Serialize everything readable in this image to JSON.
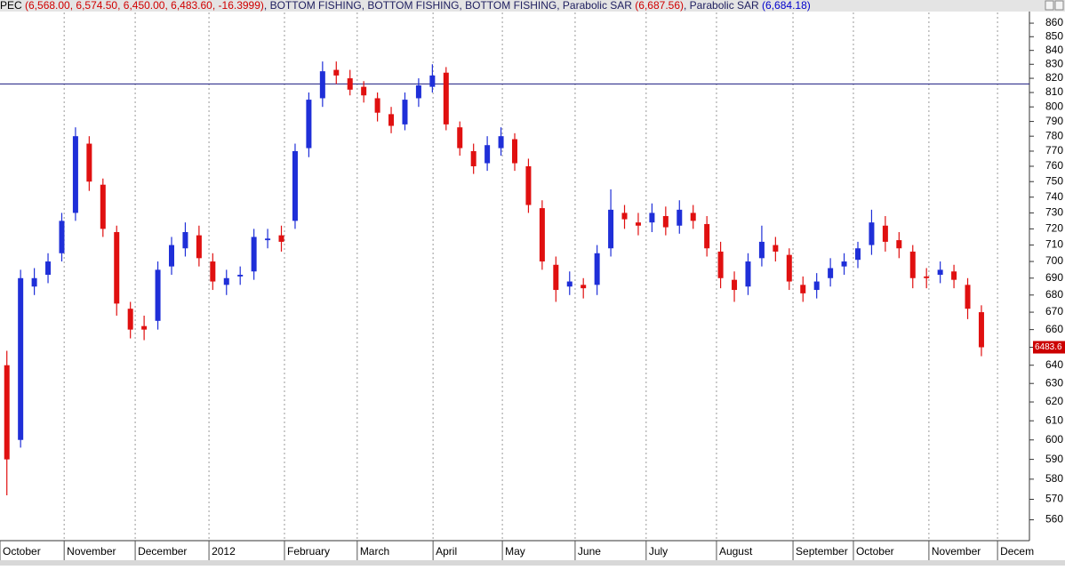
{
  "chart_data": {
    "type": "candlestick",
    "header": [
      {
        "text": "PEC ",
        "color": "#000000"
      },
      {
        "text": "(6,568.00, 6,574.50, 6,450.00, 6,483.60, -16.3999)",
        "color": "#d00000"
      },
      {
        "text": ", BOTTOM FISHING, BOTTOM FISHING, BOTTOM FISHING, Parabolic SAR ",
        "color": "#202060"
      },
      {
        "text": "(6,687.56)",
        "color": "#d00000"
      },
      {
        "text": ", Parabolic SAR ",
        "color": "#202060"
      },
      {
        "text": "(6,684.18)",
        "color": "#0000cc"
      }
    ],
    "last_price_label": "6483.6",
    "log_scale": true,
    "up_color": "#1f2fd8",
    "down_color": "#e01010",
    "hline": 816,
    "hline_color": "#1a1a80",
    "grid": true,
    "xlim": [
      0,
      300
    ],
    "ylim": [
      550,
      868
    ],
    "yticks": [
      560,
      570,
      580,
      590,
      600,
      610,
      620,
      630,
      640,
      650,
      660,
      670,
      680,
      690,
      700,
      710,
      720,
      730,
      740,
      750,
      760,
      770,
      780,
      790,
      800,
      810,
      820,
      830,
      840,
      850,
      860
    ],
    "xticks": [
      {
        "value": 0,
        "label": "October"
      },
      {
        "value": 18.7,
        "label": "November"
      },
      {
        "value": 39.4,
        "label": "December"
      },
      {
        "value": 60.9,
        "label": "2012"
      },
      {
        "value": 82.9,
        "label": "February"
      },
      {
        "value": 104.1,
        "label": "March"
      },
      {
        "value": 126.2,
        "label": "April"
      },
      {
        "value": 146.4,
        "label": "May"
      },
      {
        "value": 167.6,
        "label": "June"
      },
      {
        "value": 188.3,
        "label": "July"
      },
      {
        "value": 208.8,
        "label": "August"
      },
      {
        "value": 231.1,
        "label": "September"
      },
      {
        "value": 248.7,
        "label": "October"
      },
      {
        "value": 270.7,
        "label": "November"
      },
      {
        "value": 290.7,
        "label": "Decem"
      }
    ],
    "x": [
      2,
      6,
      10,
      14,
      18,
      22,
      26,
      30,
      34,
      38,
      42,
      46,
      50,
      54,
      58,
      62,
      66,
      70,
      74,
      78,
      82,
      86,
      90,
      94,
      98,
      102,
      106,
      110,
      114,
      118,
      122,
      126,
      130,
      134,
      138,
      142,
      146,
      150,
      154,
      158,
      162,
      166,
      170,
      174,
      178,
      182,
      186,
      190,
      194,
      198,
      202,
      206,
      210,
      214,
      218,
      222,
      226,
      230,
      234,
      238,
      242,
      246,
      250,
      254,
      258,
      262,
      266,
      270,
      274,
      278,
      282,
      286
    ],
    "open": [
      640,
      600,
      685,
      692,
      705,
      730,
      775,
      748,
      718,
      672,
      662,
      665,
      697,
      708,
      716,
      700,
      686,
      691,
      694,
      713,
      716,
      725,
      772,
      806,
      826,
      820,
      814,
      806,
      795,
      788,
      806,
      814,
      824,
      786,
      770,
      762,
      772,
      778,
      760,
      733,
      698,
      685,
      686,
      686,
      708,
      730,
      724,
      724,
      728,
      722,
      730,
      723,
      706,
      689,
      685,
      702,
      710,
      704,
      686,
      683,
      690,
      697,
      701,
      710,
      722,
      713,
      706,
      691,
      692,
      694,
      686,
      670
    ],
    "high": [
      648,
      695,
      696,
      705,
      730,
      786,
      780,
      752,
      722,
      676,
      668,
      700,
      715,
      724,
      722,
      705,
      695,
      697,
      720,
      720,
      722,
      775,
      810,
      832,
      832,
      826,
      818,
      810,
      800,
      810,
      820,
      830,
      828,
      790,
      775,
      780,
      786,
      782,
      765,
      738,
      703,
      694,
      690,
      710,
      745,
      735,
      730,
      736,
      734,
      738,
      735,
      728,
      712,
      694,
      705,
      722,
      715,
      708,
      691,
      693,
      702,
      705,
      712,
      732,
      728,
      718,
      710,
      696,
      700,
      698,
      690,
      674
    ],
    "low": [
      572,
      596,
      680,
      687,
      700,
      725,
      744,
      715,
      668,
      655,
      654,
      660,
      692,
      703,
      697,
      683,
      680,
      686,
      689,
      708,
      706,
      720,
      766,
      800,
      816,
      808,
      803,
      790,
      782,
      784,
      800,
      810,
      784,
      767,
      755,
      757,
      767,
      757,
      730,
      695,
      676,
      680,
      678,
      680,
      703,
      720,
      716,
      718,
      716,
      717,
      720,
      703,
      684,
      676,
      680,
      697,
      700,
      683,
      676,
      678,
      685,
      692,
      696,
      704,
      706,
      702,
      684,
      684,
      687,
      684,
      666,
      645
    ],
    "close": [
      590,
      690,
      690,
      700,
      725,
      780,
      750,
      720,
      675,
      660,
      660,
      695,
      710,
      718,
      702,
      688,
      690,
      692,
      715,
      714,
      712,
      770,
      805,
      825,
      822,
      812,
      808,
      796,
      787,
      805,
      815,
      822,
      788,
      772,
      760,
      774,
      780,
      762,
      735,
      700,
      683,
      688,
      684,
      705,
      732,
      726,
      722,
      730,
      721,
      732,
      725,
      708,
      690,
      683,
      700,
      712,
      706,
      688,
      681,
      688,
      696,
      700,
      708,
      724,
      712,
      708,
      690,
      690,
      695,
      689,
      672,
      650
    ]
  }
}
